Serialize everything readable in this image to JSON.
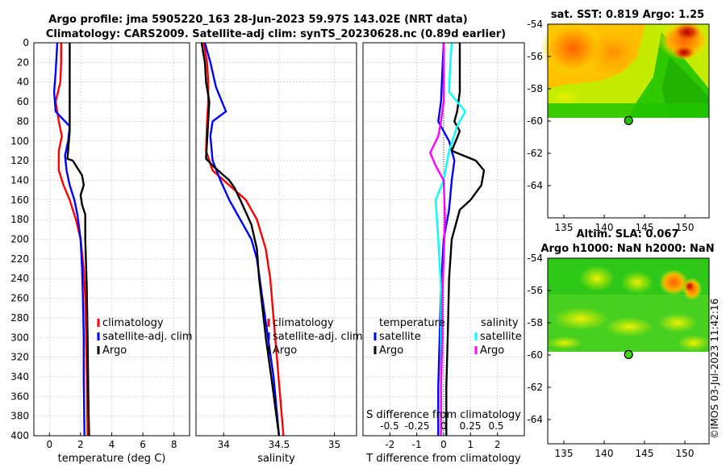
{
  "header": {
    "title_line1": "Argo profile: jma 5905220_163 28-Jun-2023 59.97S 143.02E (NRT data)",
    "title_line2": "Climatology: CARS2009. Satellite-adj clim: synTS_20230628.nc (0.89d earlier)"
  },
  "watermark": "©IMOS 03-Jul-2023 11:42:16",
  "colors": {
    "climatology": "#ff0000",
    "satellite": "#0000ff",
    "argo": "#000000",
    "sal_satellite": "#00ffff",
    "sal_argo": "#ff00ff",
    "grid": "#bdbdbd"
  },
  "chart_data": [
    {
      "type": "line",
      "id": "temperature",
      "xlabel": "temperature (deg C)",
      "xlim": [
        -1,
        9
      ],
      "xticks": [
        0,
        2,
        4,
        6,
        8
      ],
      "ylim": [
        0,
        400
      ],
      "yticks": [
        0,
        20,
        40,
        60,
        80,
        100,
        120,
        140,
        160,
        180,
        200,
        220,
        240,
        260,
        280,
        300,
        320,
        340,
        360,
        380,
        400
      ],
      "legend": [
        "climatology",
        "satellite-adj. clim",
        "Argo"
      ],
      "series": [
        {
          "name": "climatology",
          "color": "#ff0000",
          "points": [
            [
              0.75,
              0
            ],
            [
              0.75,
              20
            ],
            [
              0.7,
              40
            ],
            [
              0.4,
              60
            ],
            [
              0.6,
              80
            ],
            [
              0.8,
              95
            ],
            [
              0.6,
              110
            ],
            [
              0.6,
              130
            ],
            [
              0.9,
              145
            ],
            [
              1.3,
              160
            ],
            [
              1.7,
              180
            ],
            [
              2.0,
              200
            ],
            [
              2.2,
              230
            ],
            [
              2.3,
              260
            ],
            [
              2.35,
              300
            ],
            [
              2.4,
              340
            ],
            [
              2.45,
              400
            ]
          ]
        },
        {
          "name": "satellite-adj. clim",
          "color": "#0000ff",
          "points": [
            [
              0.5,
              0
            ],
            [
              0.4,
              30
            ],
            [
              0.3,
              50
            ],
            [
              0.4,
              70
            ],
            [
              1.3,
              85
            ],
            [
              1.2,
              100
            ],
            [
              1.0,
              115
            ],
            [
              1.1,
              130
            ],
            [
              1.3,
              145
            ],
            [
              1.6,
              160
            ],
            [
              1.8,
              175
            ],
            [
              2.0,
              200
            ],
            [
              2.1,
              230
            ],
            [
              2.15,
              260
            ],
            [
              2.2,
              300
            ],
            [
              2.2,
              340
            ],
            [
              2.25,
              400
            ]
          ]
        },
        {
          "name": "Argo",
          "color": "#000000",
          "points": [
            [
              1.3,
              0
            ],
            [
              1.3,
              60
            ],
            [
              1.3,
              90
            ],
            [
              1.2,
              110
            ],
            [
              1.15,
              118
            ],
            [
              1.5,
              120
            ],
            [
              1.7,
              125
            ],
            [
              2.1,
              135
            ],
            [
              2.2,
              145
            ],
            [
              2.0,
              155
            ],
            [
              2.1,
              165
            ],
            [
              2.3,
              175
            ],
            [
              2.3,
              200
            ],
            [
              2.4,
              250
            ],
            [
              2.45,
              300
            ],
            [
              2.5,
              360
            ],
            [
              2.55,
              400
            ]
          ]
        }
      ]
    },
    {
      "type": "line",
      "id": "salinity",
      "xlabel": "salinity",
      "xlim": [
        33.75,
        35.2
      ],
      "xticks": [
        34,
        34.5,
        35
      ],
      "ylim": [
        0,
        400
      ],
      "legend": [
        "climatology",
        "satellite-adj. clim",
        "Argo"
      ],
      "series": [
        {
          "name": "climatology",
          "color": "#ff0000",
          "points": [
            [
              33.82,
              0
            ],
            [
              33.85,
              20
            ],
            [
              33.86,
              40
            ],
            [
              33.86,
              60
            ],
            [
              33.85,
              80
            ],
            [
              33.84,
              110
            ],
            [
              33.9,
              130
            ],
            [
              34.05,
              145
            ],
            [
              34.2,
              160
            ],
            [
              34.3,
              180
            ],
            [
              34.38,
              210
            ],
            [
              34.42,
              240
            ],
            [
              34.45,
              280
            ],
            [
              34.48,
              320
            ],
            [
              34.51,
              360
            ],
            [
              34.54,
              400
            ]
          ]
        },
        {
          "name": "satellite-adj. clim",
          "color": "#0000ff",
          "points": [
            [
              33.83,
              0
            ],
            [
              33.88,
              20
            ],
            [
              33.93,
              45
            ],
            [
              34.02,
              70
            ],
            [
              33.9,
              80
            ],
            [
              33.88,
              95
            ],
            [
              33.9,
              120
            ],
            [
              33.97,
              140
            ],
            [
              34.05,
              160
            ],
            [
              34.15,
              180
            ],
            [
              34.25,
              200
            ],
            [
              34.3,
              220
            ],
            [
              34.35,
              260
            ],
            [
              34.4,
              300
            ],
            [
              34.45,
              340
            ],
            [
              34.5,
              400
            ]
          ]
        },
        {
          "name": "Argo",
          "color": "#000000",
          "points": [
            [
              33.8,
              0
            ],
            [
              33.83,
              20
            ],
            [
              33.84,
              40
            ],
            [
              33.87,
              60
            ],
            [
              33.86,
              80
            ],
            [
              33.85,
              100
            ],
            [
              33.84,
              118
            ],
            [
              33.9,
              125
            ],
            [
              34.0,
              135
            ],
            [
              34.05,
              140
            ],
            [
              34.1,
              148
            ],
            [
              34.15,
              160
            ],
            [
              34.25,
              185
            ],
            [
              34.3,
              210
            ],
            [
              34.32,
              240
            ],
            [
              34.34,
              260
            ],
            [
              34.38,
              300
            ],
            [
              34.43,
              340
            ],
            [
              34.5,
              400
            ]
          ]
        }
      ]
    },
    {
      "type": "line",
      "id": "difference",
      "xlabel": "T difference from climatology",
      "xlim": [
        -3,
        3
      ],
      "xticks": [
        -2,
        -1,
        0,
        1,
        2
      ],
      "top_axis_label": "S difference from climatology",
      "top_xticks": [
        "-0.5",
        "-0.25",
        "0",
        "0.25",
        "0.5"
      ],
      "ylim": [
        0,
        400
      ],
      "legend_left": {
        "title": "temperature",
        "entries": [
          "satellite",
          "Argo"
        ]
      },
      "legend_right": {
        "title": "salinity",
        "entries": [
          "satellite",
          "Argo"
        ]
      },
      "series": [
        {
          "name": "T satellite",
          "color": "#0000ff",
          "points": [
            [
              0,
              0
            ],
            [
              -0.05,
              30
            ],
            [
              -0.1,
              60
            ],
            [
              -0.2,
              80
            ],
            [
              0.2,
              100
            ],
            [
              0.4,
              120
            ],
            [
              0.3,
              140
            ],
            [
              0.2,
              170
            ],
            [
              0.0,
              200
            ],
            [
              -0.1,
              250
            ],
            [
              -0.15,
              300
            ],
            [
              -0.2,
              350
            ],
            [
              -0.2,
              400
            ]
          ]
        },
        {
          "name": "T Argo",
          "color": "#000000",
          "points": [
            [
              0.6,
              0
            ],
            [
              0.6,
              50
            ],
            [
              0.5,
              70
            ],
            [
              0.4,
              80
            ],
            [
              0.6,
              90
            ],
            [
              0.3,
              110
            ],
            [
              1.2,
              120
            ],
            [
              1.5,
              130
            ],
            [
              1.4,
              145
            ],
            [
              1.0,
              160
            ],
            [
              0.6,
              170
            ],
            [
              0.3,
              200
            ],
            [
              0.2,
              240
            ],
            [
              0.15,
              300
            ],
            [
              0.1,
              350
            ],
            [
              0.1,
              400
            ]
          ]
        },
        {
          "name": "S satellite",
          "color": "#00ffff",
          "points": [
            [
              0.3,
              0
            ],
            [
              0.25,
              20
            ],
            [
              0.2,
              50
            ],
            [
              0.8,
              70
            ],
            [
              0.5,
              85
            ],
            [
              0.2,
              110
            ],
            [
              0.0,
              140
            ],
            [
              -0.3,
              160
            ],
            [
              -0.2,
              200
            ],
            [
              -0.1,
              250
            ],
            [
              -0.1,
              300
            ],
            [
              -0.1,
              350
            ],
            [
              -0.1,
              400
            ]
          ]
        },
        {
          "name": "S Argo",
          "color": "#ff00ff",
          "points": [
            [
              0.0,
              0
            ],
            [
              0.0,
              60
            ],
            [
              -0.1,
              80
            ],
            [
              -0.2,
              95
            ],
            [
              -0.5,
              112
            ],
            [
              -0.3,
              125
            ],
            [
              0.0,
              140
            ],
            [
              0.05,
              180
            ],
            [
              0.0,
              220
            ],
            [
              -0.05,
              260
            ],
            [
              -0.05,
              300
            ],
            [
              -0.1,
              350
            ],
            [
              -0.1,
              400
            ]
          ]
        }
      ]
    },
    {
      "type": "heatmap",
      "id": "sst_map",
      "title": "sat. SST: 0.819 Argo: 1.25",
      "xlim": [
        133,
        153
      ],
      "ylim": [
        -66,
        -54
      ],
      "xticks": [
        135,
        140,
        145,
        150
      ],
      "yticks": [
        -54,
        -56,
        -58,
        -60,
        -62,
        -64
      ],
      "marker": [
        143.02,
        -59.97
      ],
      "data_ylim": [
        -60,
        -54
      ]
    },
    {
      "type": "heatmap",
      "id": "sla_map",
      "title_line1": "Altim. SLA: 0.067",
      "title_line2": "Argo h1000: NaN h2000: NaN",
      "xlim": [
        133,
        153
      ],
      "ylim": [
        -66,
        -54
      ],
      "xticks": [
        135,
        140,
        145,
        150
      ],
      "yticks": [
        -54,
        -56,
        -58,
        -60,
        -62,
        -64
      ],
      "marker": [
        143.02,
        -59.97
      ],
      "data_ylim": [
        -60,
        -54
      ]
    }
  ]
}
